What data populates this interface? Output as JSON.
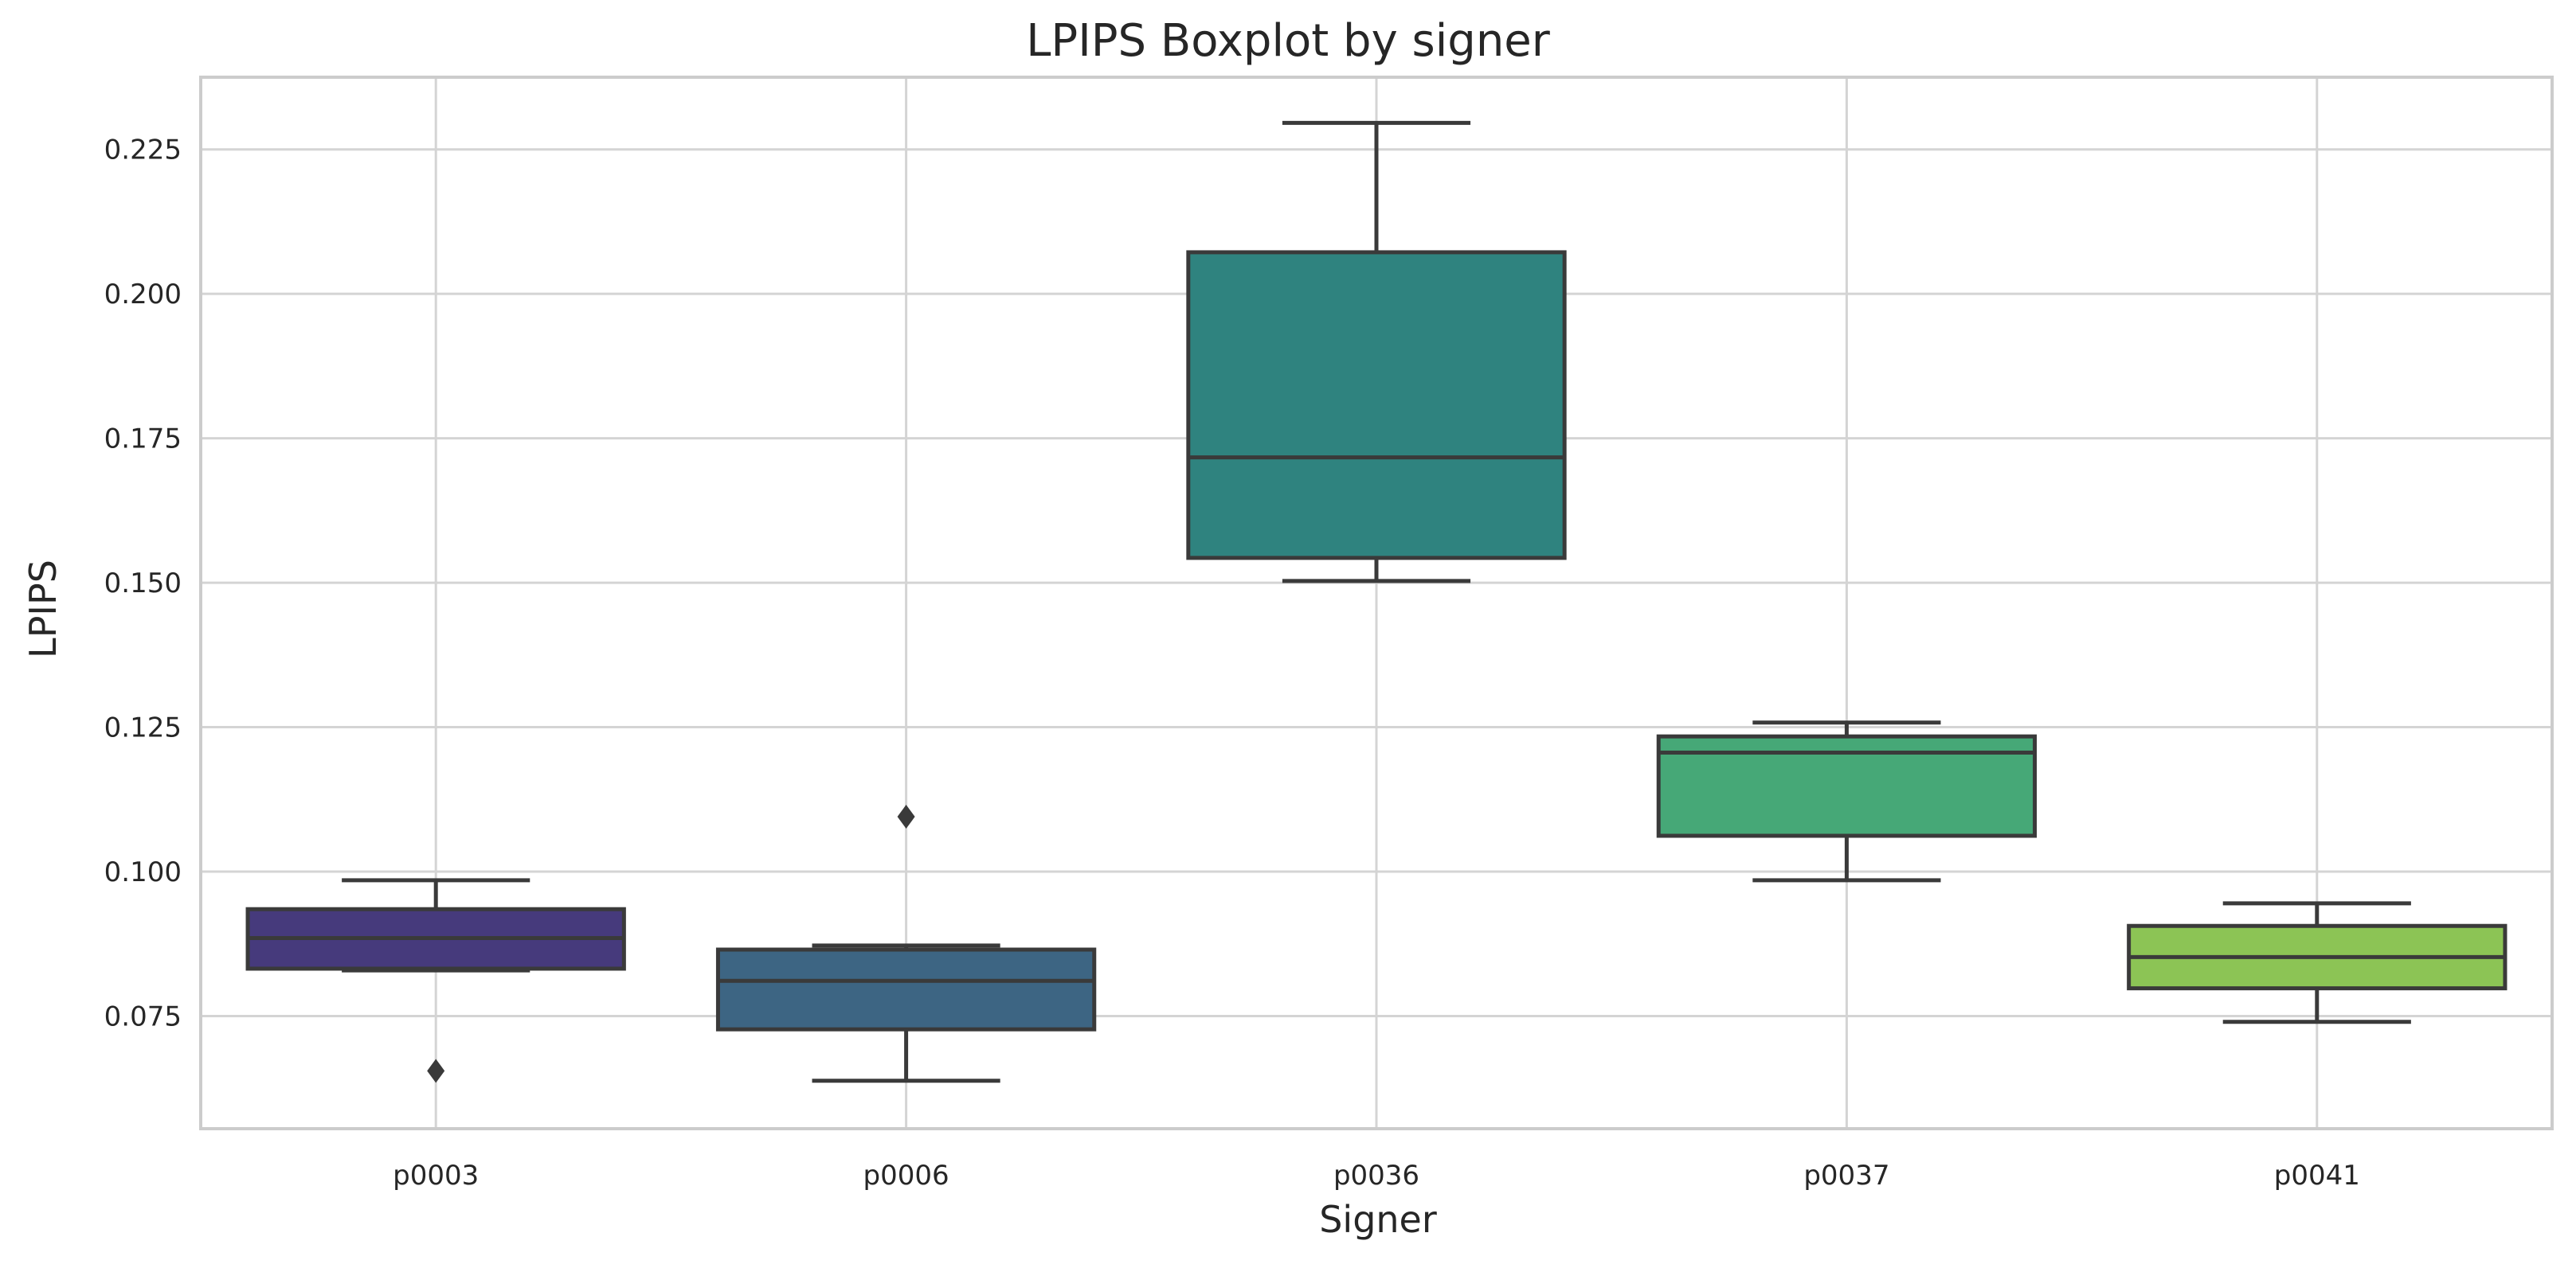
{
  "chart_data": {
    "type": "boxplot",
    "title": "LPIPS Boxplot by signer",
    "xlabel": "Signer",
    "ylabel": "LPIPS",
    "ylim": [
      0.0555,
      0.2375
    ],
    "yticks": [
      0.075,
      0.1,
      0.125,
      0.15,
      0.175,
      0.2,
      0.225
    ],
    "ytick_labels": [
      "0.075",
      "0.100",
      "0.125",
      "0.150",
      "0.175",
      "0.200",
      "0.225"
    ],
    "grid": true,
    "categories": [
      "p0003",
      "p0006",
      "p0036",
      "p0037",
      "p0041"
    ],
    "boxes": [
      {
        "category": "p0003",
        "whisker_low": 0.0829,
        "q1": 0.0832,
        "median": 0.0885,
        "q3": 0.0935,
        "whisker_high": 0.0985,
        "outliers": [
          0.0655
        ],
        "color": "#463a7c"
      },
      {
        "category": "p0006",
        "whisker_low": 0.0638,
        "q1": 0.0727,
        "median": 0.0811,
        "q3": 0.0865,
        "whisker_high": 0.0872,
        "outliers": [
          0.1095
        ],
        "color": "#3d6583"
      },
      {
        "category": "p0036",
        "whisker_low": 0.1503,
        "q1": 0.1543,
        "median": 0.1717,
        "q3": 0.2072,
        "whisker_high": 0.2296,
        "outliers": [],
        "color": "#2f837f"
      },
      {
        "category": "p0037",
        "whisker_low": 0.0985,
        "q1": 0.1062,
        "median": 0.1206,
        "q3": 0.1234,
        "whisker_high": 0.1258,
        "outliers": [],
        "color": "#46a877"
      },
      {
        "category": "p0041",
        "whisker_low": 0.074,
        "q1": 0.0798,
        "median": 0.0852,
        "q3": 0.0906,
        "whisker_high": 0.0945,
        "outliers": [],
        "color": "#8cc455"
      }
    ],
    "colors": {
      "grid": "#d4d4d4",
      "frame": "#cccccc",
      "line": "#3a3a3a",
      "text": "#262626"
    }
  }
}
